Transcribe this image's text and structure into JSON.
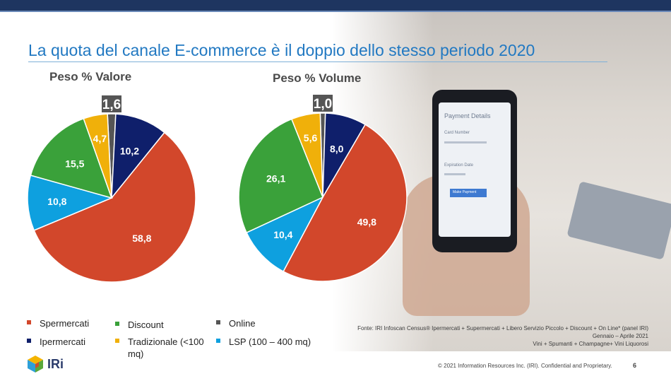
{
  "slide_title": "La quota del canale E-commerce è il doppio dello stesso periodo 2020",
  "chart_data": [
    {
      "type": "pie",
      "title": "Peso % Valore",
      "series": [
        {
          "label": "Online",
          "value": 1.6,
          "color": "#555555"
        },
        {
          "label": "Ipermercati",
          "value": 10.2,
          "color": "#0f1f6b"
        },
        {
          "label": "Spermercati",
          "value": 58.8,
          "color": "#d2472b"
        },
        {
          "label": "LSP (100 – 400 mq)",
          "value": 10.8,
          "color": "#0ea0df"
        },
        {
          "label": "Discount",
          "value": 15.5,
          "color": "#3aa13a"
        },
        {
          "label": "Tradizionale (<100 mq)",
          "value": 4.7,
          "color": "#f0b00a"
        }
      ],
      "value_labels": [
        "1,6",
        "10,2",
        "58,8",
        "10,8",
        "15,5",
        "4,7"
      ]
    },
    {
      "type": "pie",
      "title": "Peso % Volume",
      "series": [
        {
          "label": "Online",
          "value": 1.0,
          "color": "#555555"
        },
        {
          "label": "Ipermercati",
          "value": 8.0,
          "color": "#0f1f6b"
        },
        {
          "label": "Spermercati",
          "value": 49.8,
          "color": "#d2472b"
        },
        {
          "label": "LSP (100 – 400 mq)",
          "value": 10.4,
          "color": "#0ea0df"
        },
        {
          "label": "Discount",
          "value": 26.1,
          "color": "#3aa13a"
        },
        {
          "label": "Tradizionale (<100 mq)",
          "value": 5.6,
          "color": "#f0b00a"
        }
      ],
      "value_labels": [
        "1,0",
        "8,0",
        "49,8",
        "10,4",
        "26,1",
        "5,6"
      ]
    }
  ],
  "legend": [
    {
      "label": "Spermercati",
      "color": "#d2472b"
    },
    {
      "label": "Discount",
      "color": "#3aa13a"
    },
    {
      "label": "Online",
      "color": "#555555"
    },
    {
      "label": "Ipermercati",
      "color": "#0f1f6b"
    },
    {
      "label": "Tradizionale (<100 mq)",
      "color": "#f0b00a"
    },
    {
      "label": "LSP (100 – 400 mq)",
      "color": "#0ea0df"
    }
  ],
  "source_lines": [
    "Fonte: IRI Infoscan Census® Ipermercati + Supermercati + Libero Servizio Piccolo + Discount + On Line* (panel IRI)",
    "Gennaio – Aprile 2021",
    "Vini + Spumanti + Champagne+ Vini Liquorosi"
  ],
  "photo_texts": {
    "payment": "Payment Details",
    "card_number": "Card Number",
    "expiration": "Expiration Date",
    "button": "Make Payment"
  },
  "footer": {
    "copyright": "© 2021 Information Resources Inc. (IRI). Confidential and Proprietary.",
    "page": "6",
    "logo_text": "IRi"
  }
}
